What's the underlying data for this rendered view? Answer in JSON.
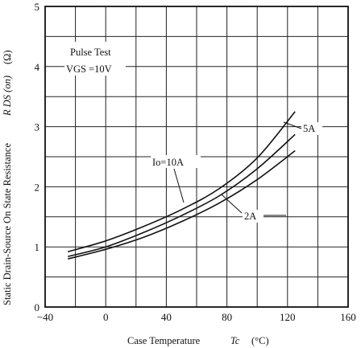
{
  "chart_data": {
    "type": "line",
    "xlabel": "Case Temperature",
    "xlabel_symbol": "Tc",
    "xlabel_unit": "(°C)",
    "ylabel": "Static Drain-Source On State Resistance",
    "ylabel_symbol": "R DS (on)",
    "ylabel_unit": "(Ω)",
    "xlim": [
      -40,
      160
    ],
    "ylim": [
      0,
      5
    ],
    "xticks": [
      -40,
      0,
      40,
      80,
      120,
      160
    ],
    "yticks": [
      0,
      1,
      2,
      3,
      4,
      5
    ],
    "x_minor_step": 20,
    "y_minor_step": 0.5,
    "grid": true,
    "conditions": [
      "Pulse Test",
      "VGS =10V"
    ],
    "series": [
      {
        "name": "ID=10A",
        "x": [
          -25,
          0,
          25,
          50,
          75,
          100,
          125
        ],
        "y": [
          0.92,
          1.1,
          1.34,
          1.62,
          1.97,
          2.48,
          3.25
        ]
      },
      {
        "name": "5A",
        "x": [
          -25,
          0,
          25,
          50,
          75,
          100,
          125
        ],
        "y": [
          0.84,
          1.0,
          1.24,
          1.52,
          1.85,
          2.3,
          2.87
        ]
      },
      {
        "name": "2A",
        "x": [
          -25,
          0,
          25,
          50,
          75,
          100,
          125
        ],
        "y": [
          0.8,
          0.96,
          1.16,
          1.42,
          1.73,
          2.12,
          2.6
        ]
      }
    ],
    "annotations": [
      "Io=10A",
      "5A",
      "2A"
    ]
  }
}
